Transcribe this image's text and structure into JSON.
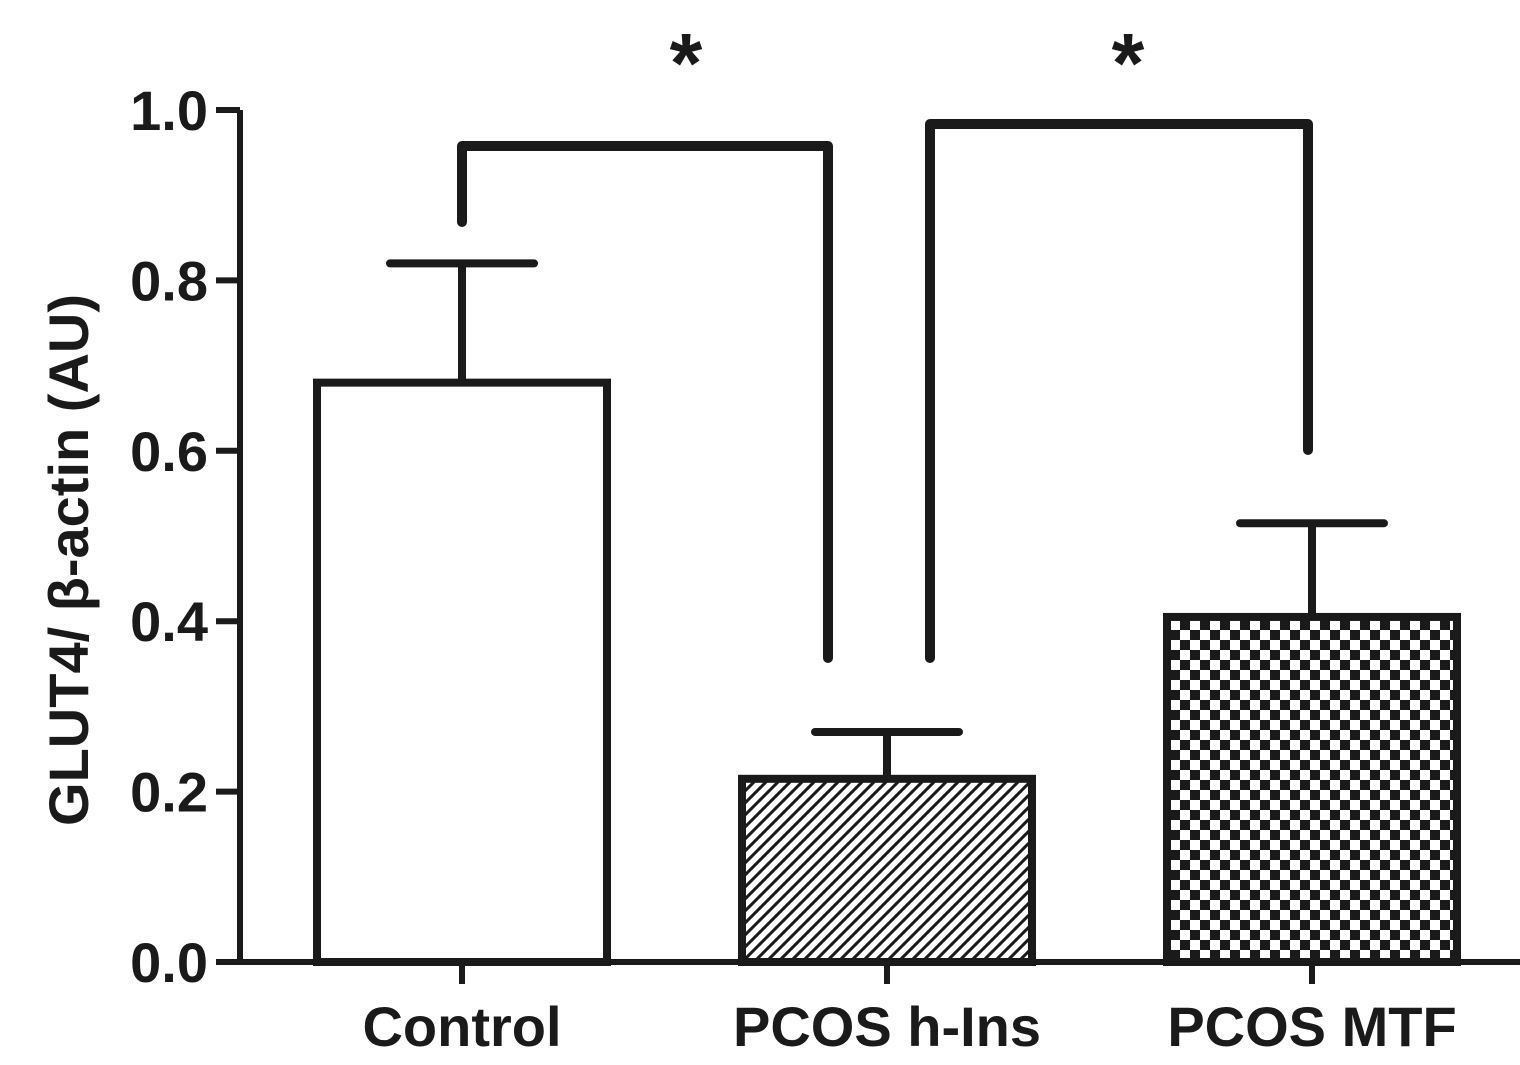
{
  "chart_data": {
    "type": "bar",
    "ylabel": "GLUT4/ β-actin (AU)",
    "ylim": [
      0,
      1.0
    ],
    "ytick_labels": [
      "0.0",
      "0.2",
      "0.4",
      "0.6",
      "0.8",
      "1.0"
    ],
    "yticks": [
      0,
      0.2,
      0.4,
      0.6,
      0.8,
      1.0
    ],
    "categories": [
      "Control",
      "PCOS h-Ins",
      "PCOS MTF"
    ],
    "values": [
      0.68,
      0.215,
      0.405
    ],
    "error_upper": [
      0.82,
      0.27,
      0.515
    ],
    "fills": [
      "none",
      "diagonal-hatch",
      "checkerboard"
    ],
    "significance": [
      {
        "from": "Control",
        "to": "PCOS h-Ins",
        "label": "*"
      },
      {
        "from": "PCOS h-Ins",
        "to": "PCOS MTF",
        "label": "*"
      }
    ],
    "grid": false,
    "colors": {
      "stroke": "#1a1a1a",
      "background": "#ffffff"
    }
  }
}
